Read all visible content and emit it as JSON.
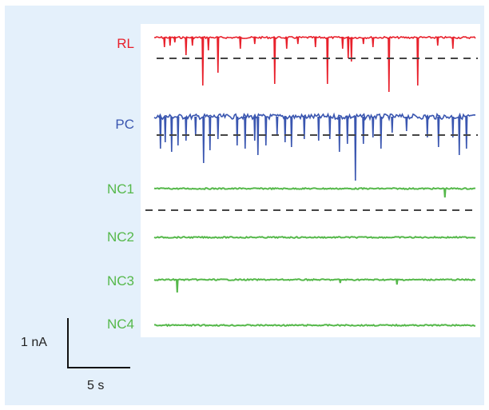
{
  "traces": [
    {
      "label": "RL",
      "color": "#e8202b"
    },
    {
      "label": "PC",
      "color": "#3a56b0"
    },
    {
      "label": "NC1",
      "color": "#55b84a"
    },
    {
      "label": "NC2",
      "color": "#55b84a"
    },
    {
      "label": "NC3",
      "color": "#55b84a"
    },
    {
      "label": "NC4",
      "color": "#55b84a"
    }
  ],
  "scale_bar": {
    "current_label": "1 nA",
    "time_label": "5 s"
  },
  "colors": {
    "background": "#e4f0fb",
    "panel": "#ffffff",
    "threshold_line": "#444444"
  }
}
